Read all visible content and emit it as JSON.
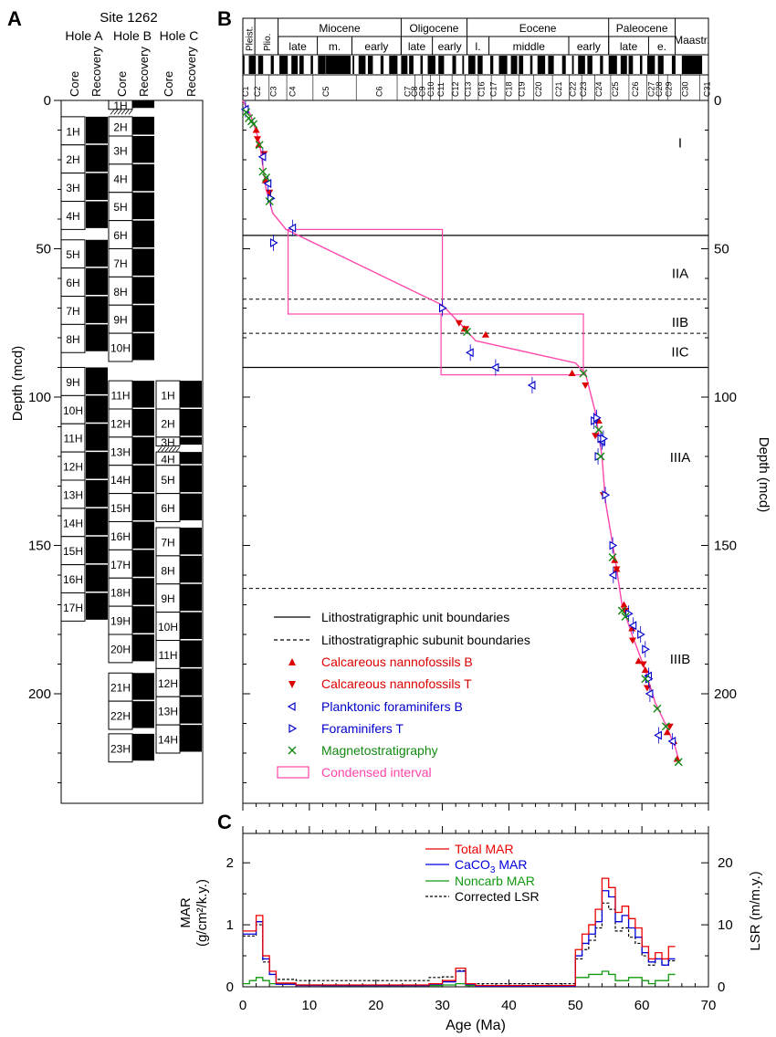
{
  "panels": {
    "a": "A",
    "b": "B",
    "c": "C"
  },
  "site_title": "Site 1262",
  "hole_labels": [
    "Hole A",
    "Hole B",
    "Hole C"
  ],
  "col_labels": {
    "core": "Core",
    "recovery": "Recovery"
  },
  "depth_ylabel": "Depth (mcd)",
  "depth_ticks": [
    "0",
    "50",
    "100",
    "150",
    "200"
  ],
  "age_ticks": [
    "0",
    "10",
    "20",
    "30",
    "40",
    "50",
    "60",
    "70"
  ],
  "cores": {
    "holeA": [
      {
        "label": "1H",
        "top": 5.5,
        "bot": 15.0
      },
      {
        "label": "2H",
        "top": 15.0,
        "bot": 24.5
      },
      {
        "label": "3H",
        "top": 24.5,
        "bot": 34.0
      },
      {
        "label": "4H",
        "top": 34.0,
        "bot": 43.5
      },
      {
        "label": "5H",
        "top": 47.0,
        "bot": 56.5
      },
      {
        "label": "6H",
        "top": 56.5,
        "bot": 66.0
      },
      {
        "label": "7H",
        "top": 66.0,
        "bot": 75.5
      },
      {
        "label": "8H",
        "top": 75.5,
        "bot": 85.0
      },
      {
        "label": "9H",
        "top": 90.0,
        "bot": 99.5
      },
      {
        "label": "10H",
        "top": 99.5,
        "bot": 109.0
      },
      {
        "label": "11H",
        "top": 109.0,
        "bot": 118.5
      },
      {
        "label": "12H",
        "top": 118.5,
        "bot": 128.0
      },
      {
        "label": "13H",
        "top": 128.0,
        "bot": 137.5
      },
      {
        "label": "14H",
        "top": 137.5,
        "bot": 147.0
      },
      {
        "label": "15H",
        "top": 147.0,
        "bot": 156.5
      },
      {
        "label": "16H",
        "top": 156.5,
        "bot": 166.0
      },
      {
        "label": "17H",
        "top": 166.0,
        "bot": 175.5
      }
    ],
    "holeB": [
      {
        "label": "1H",
        "top": 0.0,
        "bot": 3.0
      },
      {
        "label": "2H",
        "top": 5.5,
        "bot": 12.0
      },
      {
        "label": "3H",
        "top": 12.0,
        "bot": 21.5
      },
      {
        "label": "4H",
        "top": 21.5,
        "bot": 31.0
      },
      {
        "label": "5H",
        "top": 31.0,
        "bot": 40.5
      },
      {
        "label": "6H",
        "top": 40.5,
        "bot": 50.0
      },
      {
        "label": "7H",
        "top": 50.0,
        "bot": 59.5
      },
      {
        "label": "8H",
        "top": 59.5,
        "bot": 69.0
      },
      {
        "label": "9H",
        "top": 69.0,
        "bot": 78.5
      },
      {
        "label": "10H",
        "top": 78.5,
        "bot": 88.0
      },
      {
        "label": "11H",
        "top": 94.5,
        "bot": 104.0
      },
      {
        "label": "12H",
        "top": 104.0,
        "bot": 113.5
      },
      {
        "label": "13H",
        "top": 113.5,
        "bot": 123.0
      },
      {
        "label": "14H",
        "top": 123.0,
        "bot": 132.5
      },
      {
        "label": "15H",
        "top": 132.5,
        "bot": 142.0
      },
      {
        "label": "16H",
        "top": 142.0,
        "bot": 151.5
      },
      {
        "label": "17H",
        "top": 151.5,
        "bot": 161.0
      },
      {
        "label": "18H",
        "top": 161.0,
        "bot": 170.5
      },
      {
        "label": "19H",
        "top": 170.5,
        "bot": 180.0
      },
      {
        "label": "20H",
        "top": 180.0,
        "bot": 189.5
      },
      {
        "label": "21H",
        "top": 193.0,
        "bot": 202.5
      },
      {
        "label": "22H",
        "top": 202.5,
        "bot": 212.0
      },
      {
        "label": "23H",
        "top": 213.5,
        "bot": 223.0
      }
    ],
    "holeC": [
      {
        "label": "1H",
        "top": 94.5,
        "bot": 104.0
      },
      {
        "label": "2H",
        "top": 104.0,
        "bot": 113.5
      },
      {
        "label": "3H",
        "top": 113.5,
        "bot": 116.5
      },
      {
        "label": "4H",
        "top": 118.5,
        "bot": 123.0
      },
      {
        "label": "5H",
        "top": 123.0,
        "bot": 132.5
      },
      {
        "label": "6H",
        "top": 132.5,
        "bot": 142.0
      },
      {
        "label": "7H",
        "top": 144.0,
        "bot": 153.5
      },
      {
        "label": "8H",
        "top": 153.5,
        "bot": 163.0
      },
      {
        "label": "9H",
        "top": 163.0,
        "bot": 172.5
      },
      {
        "label": "10H",
        "top": 172.5,
        "bot": 182.0
      },
      {
        "label": "11H",
        "top": 182.0,
        "bot": 191.5
      },
      {
        "label": "12H",
        "top": 191.5,
        "bot": 201.0
      },
      {
        "label": "13H",
        "top": 201.0,
        "bot": 210.5
      },
      {
        "label": "14H",
        "top": 210.5,
        "bot": 220.0
      }
    ]
  },
  "epochs": [
    {
      "label": "Pleist.",
      "start": 0,
      "end": 1.8
    },
    {
      "label": "Plio.",
      "start": 1.8,
      "end": 5.3
    },
    {
      "label": "Miocene",
      "start": 5.3,
      "end": 23.8
    },
    {
      "label": "Oligocene",
      "start": 23.8,
      "end": 33.7
    },
    {
      "label": "Eocene",
      "start": 33.7,
      "end": 55.0
    },
    {
      "label": "Paleocene",
      "start": 55.0,
      "end": 65.0
    },
    {
      "label": "Maastr.",
      "start": 65.0,
      "end": 71.3
    }
  ],
  "subepochs": [
    {
      "label": "late",
      "start": 5.3,
      "end": 11.2
    },
    {
      "label": "m.",
      "start": 11.2,
      "end": 16.4
    },
    {
      "label": "early",
      "start": 16.4,
      "end": 23.8
    },
    {
      "label": "late",
      "start": 23.8,
      "end": 28.5
    },
    {
      "label": "early",
      "start": 28.5,
      "end": 33.7
    },
    {
      "label": "l.",
      "start": 33.7,
      "end": 37.0
    },
    {
      "label": "middle",
      "start": 37.0,
      "end": 49.0
    },
    {
      "label": "early",
      "start": 49.0,
      "end": 55.0
    },
    {
      "label": "late",
      "start": 55.0,
      "end": 61.0
    },
    {
      "label": "e.",
      "start": 61.0,
      "end": 65.0
    }
  ],
  "chrons": [
    {
      "label": "C1",
      "age": 0.4
    },
    {
      "label": "C2",
      "age": 2.2
    },
    {
      "label": "C3",
      "age": 4.6
    },
    {
      "label": "C4",
      "age": 7.5
    },
    {
      "label": "C5",
      "age": 12.5
    },
    {
      "label": "C6",
      "age": 20.5
    },
    {
      "label": "C7",
      "age": 24.8
    },
    {
      "label": "C8",
      "age": 25.8
    },
    {
      "label": "C9",
      "age": 27.0
    },
    {
      "label": "C10",
      "age": 28.3
    },
    {
      "label": "C11",
      "age": 29.8
    },
    {
      "label": "C12",
      "age": 32.0
    },
    {
      "label": "C13",
      "age": 33.8
    },
    {
      "label": "C16",
      "age": 35.9
    },
    {
      "label": "C17",
      "age": 37.7
    },
    {
      "label": "C18",
      "age": 40.0
    },
    {
      "label": "C19",
      "age": 41.9
    },
    {
      "label": "C20",
      "age": 44.5
    },
    {
      "label": "C21",
      "age": 47.5
    },
    {
      "label": "C22",
      "age": 49.6
    },
    {
      "label": "C23",
      "age": 51.2
    },
    {
      "label": "C24",
      "age": 53.5
    },
    {
      "label": "C25",
      "age": 56.0
    },
    {
      "label": "C26",
      "age": 59.0
    },
    {
      "label": "C27",
      "age": 61.4
    },
    {
      "label": "C28",
      "age": 62.6
    },
    {
      "label": "C29",
      "age": 64.0
    },
    {
      "label": "C30",
      "age": 66.5
    },
    {
      "label": "C31",
      "age": 69.8
    }
  ],
  "units": [
    {
      "label": "I",
      "depth": 14
    },
    {
      "label": "IIA",
      "depth": 58
    },
    {
      "label": "IIB",
      "depth": 74.5
    },
    {
      "label": "IIC",
      "depth": 84.5
    },
    {
      "label": "IIIA",
      "depth": 120
    },
    {
      "label": "IIIB",
      "depth": 188
    }
  ],
  "legend_b": {
    "solid": "Lithostratigraphic unit boundaries",
    "dashed": "Lithostratigraphic subunit boundaries",
    "nannoB": "Calcareous nannofossils B",
    "nannoT": "Calcareous nannofossils T",
    "foramB": "Planktonic foraminifers B",
    "foramT": "Foraminifers T",
    "magneto": "Magnetostratigraphy",
    "condensed": "Condensed interval"
  },
  "legend_c": {
    "total": "Total MAR",
    "caco3_pre": "CaCO",
    "caco3_sub": "3",
    "caco3_post": " MAR",
    "noncarb": "Noncarb MAR",
    "lsr": "Corrected LSR"
  },
  "panel_c_labels": {
    "ylabel_left_1": "MAR",
    "ylabel_left_2": "(g/cm²/k.y.)",
    "ylabel_right": "LSR (m/m.y.)",
    "xlabel": "Age (Ma)",
    "yticks_left": [
      "0",
      "1",
      "2"
    ],
    "yticks_right": [
      "0",
      "10",
      "20"
    ]
  },
  "colors": {
    "nanno": "#dd0000",
    "foram": "#0000cc",
    "magneto": "#118811",
    "condensed": "#ff44aa",
    "total": "#ee0000",
    "caco3": "#0000dd",
    "noncarb": "#119911",
    "lsr": "#000000"
  },
  "chart_data": {
    "type": "line",
    "age_depth": {
      "x_label": "Age (Ma)",
      "y_label": "Depth (mcd)",
      "xlim": [
        0,
        70
      ],
      "ylim": [
        0,
        230
      ],
      "age_model": [
        [
          0,
          0
        ],
        [
          1.2,
          5
        ],
        [
          2.5,
          14
        ],
        [
          3.5,
          30
        ],
        [
          4.5,
          38
        ],
        [
          6.5,
          43.5
        ],
        [
          30,
          69
        ],
        [
          33,
          76
        ],
        [
          35,
          81
        ],
        [
          50,
          88.5
        ],
        [
          51.5,
          92
        ],
        [
          53,
          105
        ],
        [
          54,
          120
        ],
        [
          54.5,
          135
        ],
        [
          56,
          155
        ],
        [
          57,
          170
        ],
        [
          58.5,
          180
        ],
        [
          60.5,
          192
        ],
        [
          62,
          203
        ],
        [
          63.5,
          210
        ],
        [
          65,
          218
        ],
        [
          65.5,
          222
        ]
      ],
      "unit_boundaries": [
        45.5,
        90
      ],
      "subunit_boundaries": [
        67,
        78.5,
        164.5
      ],
      "condensed_intervals": [
        {
          "x0": 6.8,
          "x1": 30.0,
          "y0": 43.5,
          "y1": 72.0
        },
        {
          "x0": 29.8,
          "x1": 51.2,
          "y0": 72.0,
          "y1": 92.5
        }
      ],
      "nannofossils_B": [
        [
          2.0,
          10
        ],
        [
          2.4,
          15
        ],
        [
          3.4,
          27
        ],
        [
          33.3,
          77
        ],
        [
          36.5,
          79
        ],
        [
          49.5,
          92
        ],
        [
          53.5,
          108
        ],
        [
          55.9,
          155
        ],
        [
          56.2,
          158
        ],
        [
          57.3,
          170
        ],
        [
          58.5,
          178
        ],
        [
          59.5,
          189
        ],
        [
          60.5,
          192
        ],
        [
          63.8,
          213
        ],
        [
          64.8,
          216
        ],
        [
          65.3,
          222
        ]
      ],
      "nannofossils_T": [
        [
          2.2,
          13
        ],
        [
          3.2,
          18
        ],
        [
          4.0,
          31
        ],
        [
          32.5,
          75
        ],
        [
          33.5,
          77
        ],
        [
          51.5,
          96
        ],
        [
          53.0,
          113
        ],
        [
          54.2,
          133
        ],
        [
          56.2,
          158
        ],
        [
          57.5,
          172
        ],
        [
          58.6,
          182
        ],
        [
          60.2,
          190
        ],
        [
          60.8,
          198
        ],
        [
          64.2,
          211
        ]
      ],
      "foraminifers_B": [
        [
          0.4,
          3
        ],
        [
          3.0,
          19
        ],
        [
          3.8,
          28
        ],
        [
          7.5,
          43
        ],
        [
          34.2,
          85
        ],
        [
          38.0,
          90
        ],
        [
          43.5,
          96
        ],
        [
          54.0,
          115
        ],
        [
          55.7,
          160
        ],
        [
          58.7,
          177
        ],
        [
          61.0,
          194
        ],
        [
          61.2,
          200
        ],
        [
          62.5,
          214
        ],
        [
          64.6,
          216
        ]
      ],
      "foraminifers_T": [
        [
          4.2,
          33
        ],
        [
          4.6,
          48
        ],
        [
          30.0,
          70
        ],
        [
          52.8,
          108
        ],
        [
          53.2,
          107
        ],
        [
          53.8,
          114
        ],
        [
          54.2,
          114
        ],
        [
          53.4,
          120
        ],
        [
          54.5,
          133
        ],
        [
          55.6,
          150
        ],
        [
          58.0,
          173
        ],
        [
          59.8,
          180
        ],
        [
          60.5,
          185
        ],
        [
          61.0,
          195
        ]
      ],
      "magnetostratigraphy": [
        [
          0.5,
          4
        ],
        [
          0.9,
          6
        ],
        [
          1.3,
          7
        ],
        [
          1.6,
          8
        ],
        [
          2.5,
          15
        ],
        [
          3.0,
          24
        ],
        [
          3.5,
          26
        ],
        [
          4.0,
          34
        ],
        [
          33.7,
          78
        ],
        [
          51.2,
          92
        ],
        [
          53.5,
          111
        ],
        [
          53.8,
          120
        ],
        [
          55.6,
          154
        ],
        [
          57.0,
          172
        ],
        [
          57.5,
          174
        ],
        [
          60.5,
          195
        ],
        [
          62.3,
          205
        ],
        [
          63.6,
          211
        ],
        [
          65.5,
          223
        ]
      ]
    },
    "mar": {
      "x_label": "Age (Ma)",
      "y_label_left": "MAR (g/cm²/k.y.)",
      "y_label_right": "LSR (m/m.y.)",
      "xlim": [
        0,
        70
      ],
      "ylim_left": [
        0,
        2.4
      ],
      "ylim_right": [
        0,
        24
      ],
      "age_bins": [
        0,
        1,
        2,
        3,
        4,
        5,
        8,
        12,
        20,
        28,
        30,
        32,
        33.5,
        35,
        48,
        49.5,
        50,
        51,
        52,
        53,
        54,
        55,
        56,
        57,
        58,
        59,
        60,
        61,
        62,
        63,
        64,
        65
      ],
      "total_mar": [
        0.9,
        0.9,
        1.15,
        0.5,
        0.25,
        0.06,
        0.03,
        0.03,
        0.03,
        0.05,
        0.1,
        0.3,
        0.05,
        0.02,
        0.02,
        0.02,
        0.6,
        0.85,
        1.0,
        1.25,
        1.75,
        1.6,
        1.2,
        1.3,
        1.1,
        0.95,
        0.65,
        0.45,
        0.55,
        0.45,
        0.65
      ],
      "caco3_mar": [
        0.85,
        0.85,
        1.05,
        0.45,
        0.2,
        0.04,
        0.02,
        0.02,
        0.02,
        0.04,
        0.08,
        0.25,
        0.04,
        0.01,
        0.01,
        0.01,
        0.5,
        0.7,
        0.85,
        1.05,
        1.55,
        1.45,
        1.05,
        1.15,
        0.95,
        0.8,
        0.55,
        0.4,
        0.45,
        0.35,
        0.45
      ],
      "noncarb_mar": [
        0.05,
        0.1,
        0.15,
        0.1,
        0.05,
        0.05,
        0.03,
        0.02,
        0.02,
        0.02,
        0.03,
        0.05,
        0.02,
        0.01,
        0.01,
        0.01,
        0.15,
        0.15,
        0.2,
        0.2,
        0.25,
        0.2,
        0.1,
        0.1,
        0.15,
        0.15,
        0.1,
        0.05,
        0.1,
        0.1,
        0.2
      ],
      "corrected_lsr": [
        8.2,
        8.2,
        10.0,
        4.0,
        2.0,
        1.2,
        1.0,
        1.0,
        1.0,
        1.5,
        1.6,
        2.6,
        0.5,
        0.5,
        0.5,
        0.5,
        4.5,
        6.0,
        7.5,
        9.5,
        13.5,
        12.5,
        9.0,
        9.5,
        8.0,
        7.0,
        5.0,
        3.5,
        4.5,
        3.5,
        4.2
      ]
    }
  }
}
